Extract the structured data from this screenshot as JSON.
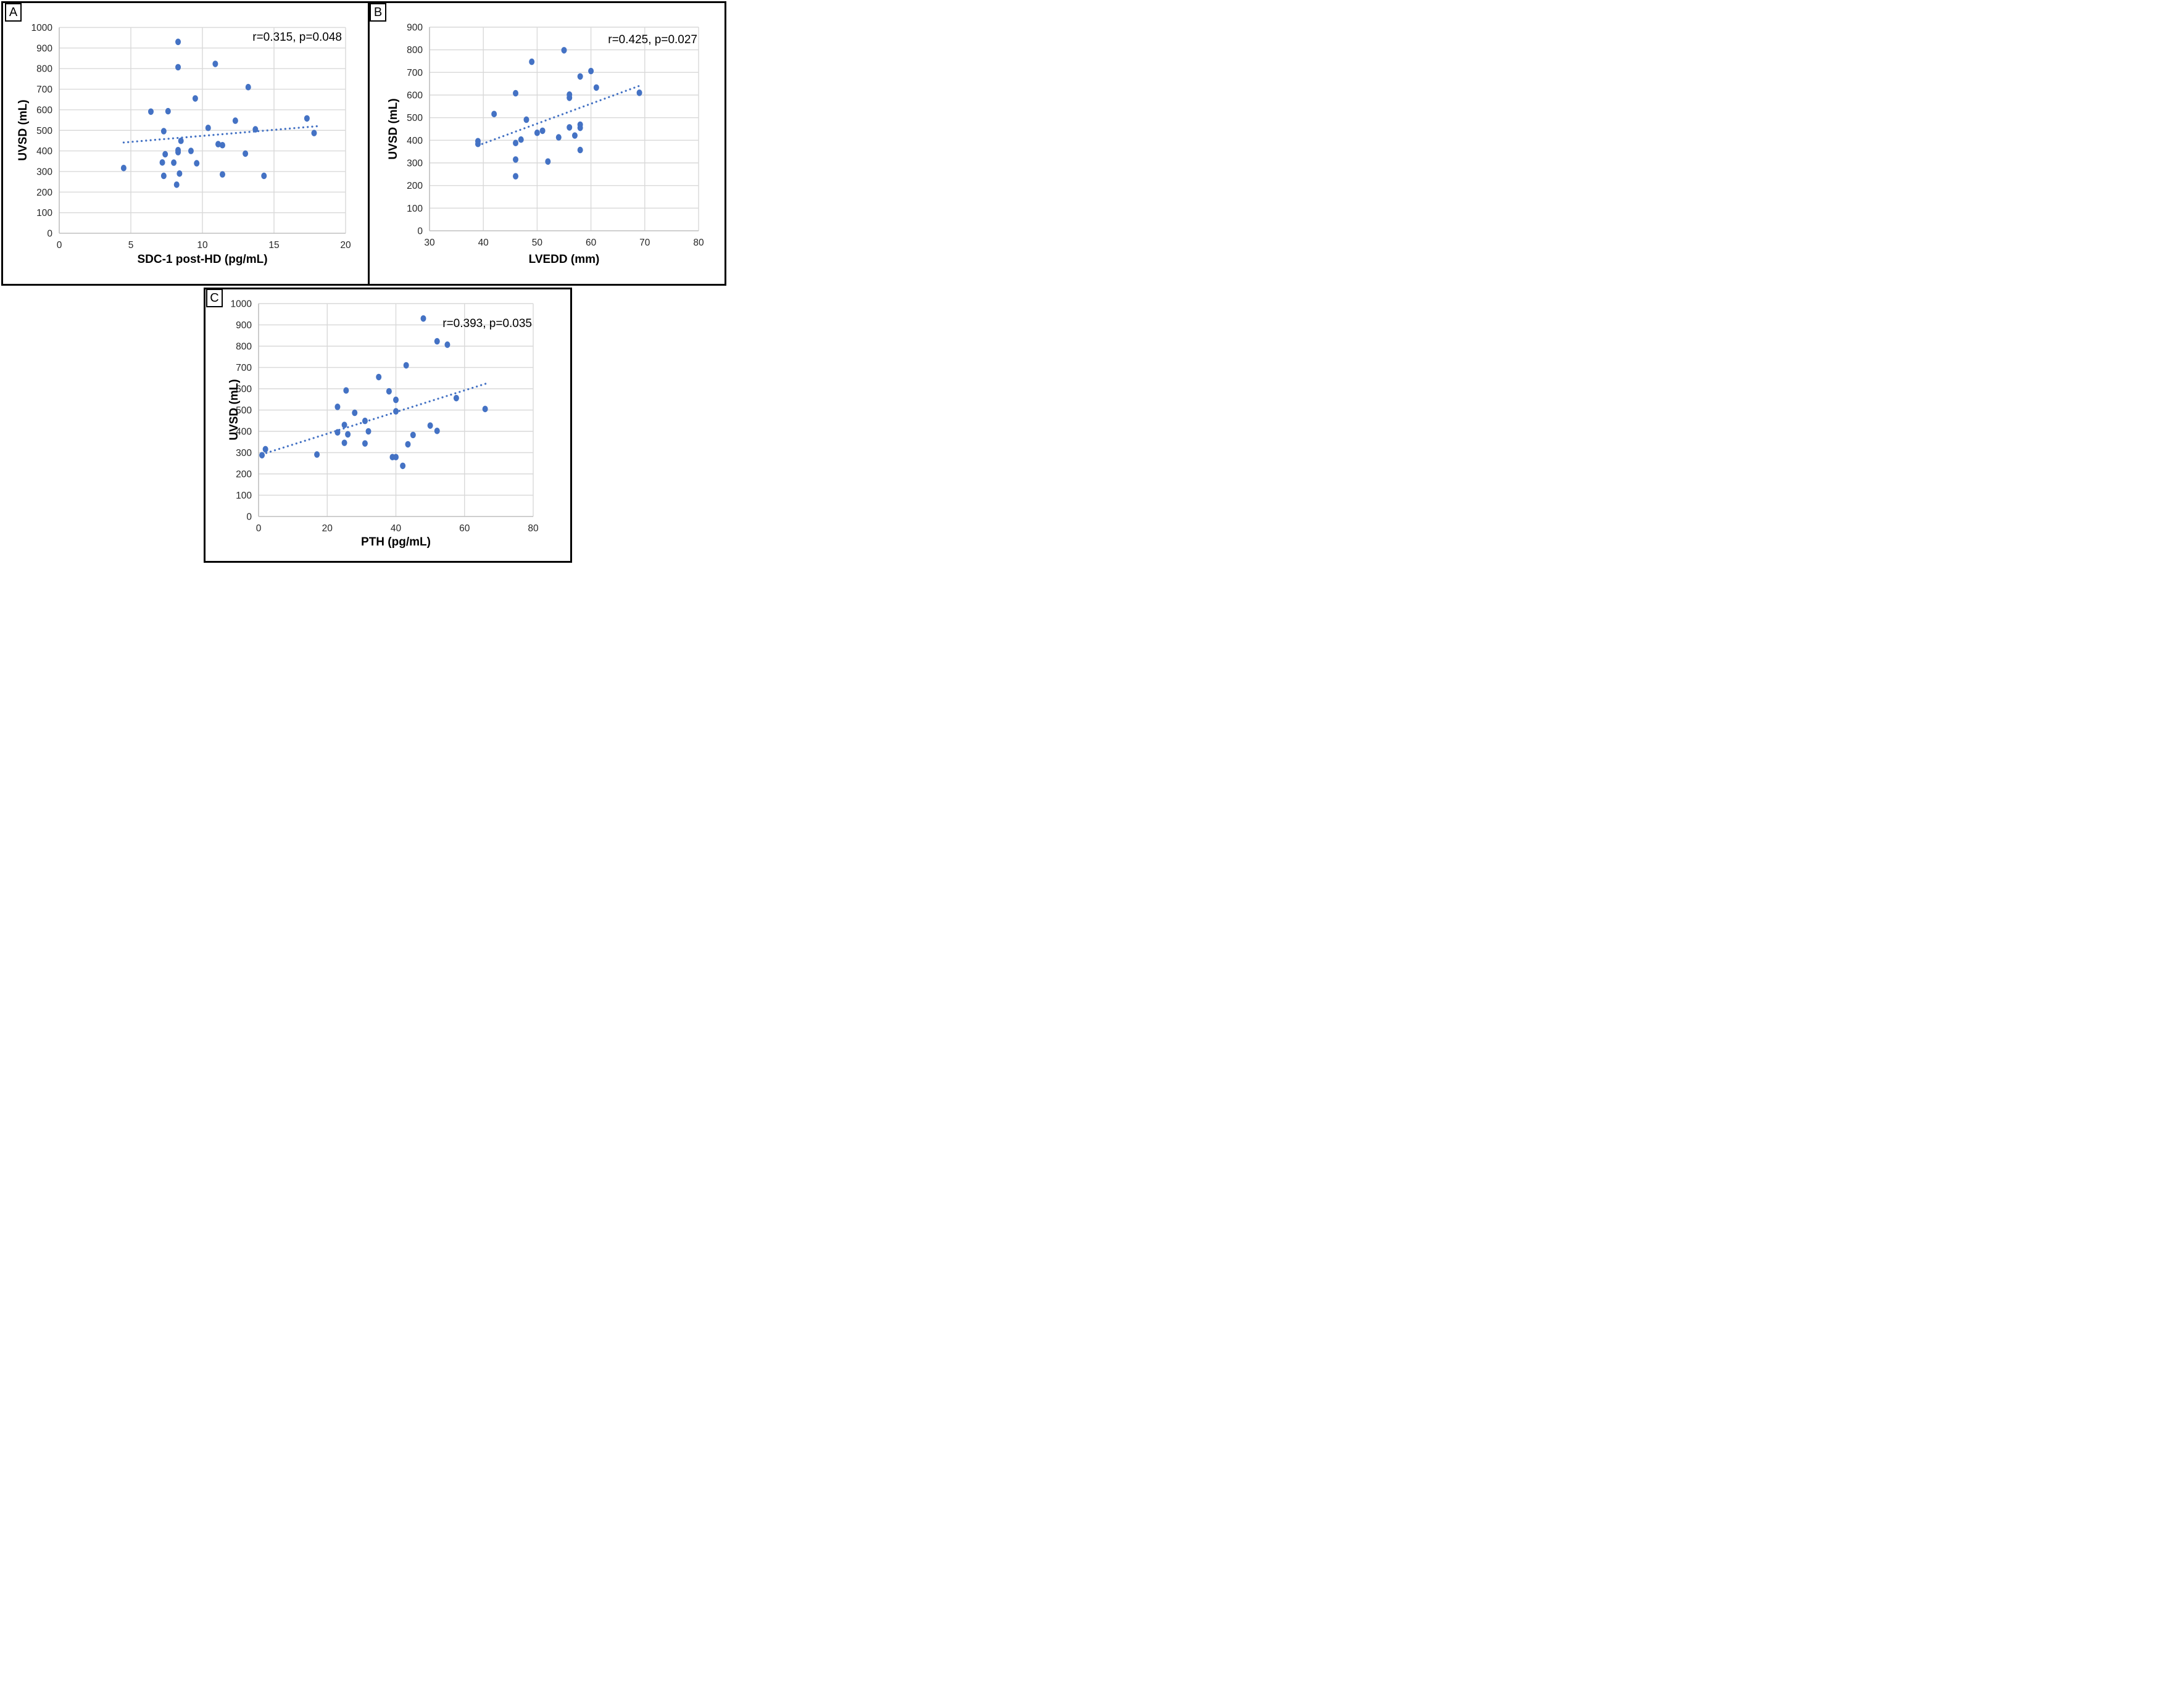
{
  "colors": {
    "marker": "#4472c4",
    "trendline": "#4472c4",
    "gridline": "#d9d9d9",
    "axis_line": "#bfbfbf",
    "tick_text": "#262626",
    "text": "#000000",
    "panel_border": "#000000",
    "background": "#ffffff"
  },
  "chart_data": [
    {
      "id": "A",
      "type": "scatter",
      "panel_label": "A",
      "annotation": "r=0.315, p=0.048",
      "xlabel": "SDC-1 post-HD (pg/mL)",
      "ylabel": "UVSD (mL)",
      "xlim": [
        0,
        20
      ],
      "ylim": [
        0,
        1000
      ],
      "x_ticks": [
        0,
        5,
        10,
        15,
        20
      ],
      "y_ticks": [
        0,
        100,
        200,
        300,
        400,
        500,
        600,
        700,
        800,
        900,
        1000
      ],
      "grid": true,
      "legend": "none",
      "points": [
        [
          4.5,
          317
        ],
        [
          6.4,
          591
        ],
        [
          7.6,
          593
        ],
        [
          7.3,
          496
        ],
        [
          7.4,
          384
        ],
        [
          7.2,
          344
        ],
        [
          7.3,
          279
        ],
        [
          8.0,
          343
        ],
        [
          8.2,
          236
        ],
        [
          8.3,
          930
        ],
        [
          8.3,
          807
        ],
        [
          8.3,
          404
        ],
        [
          8.3,
          394
        ],
        [
          8.4,
          290
        ],
        [
          8.5,
          449
        ],
        [
          9.2,
          400
        ],
        [
          9.5,
          655
        ],
        [
          9.6,
          340
        ],
        [
          10.4,
          512
        ],
        [
          10.9,
          823
        ],
        [
          11.1,
          433
        ],
        [
          11.4,
          428
        ],
        [
          11.4,
          286
        ],
        [
          12.3,
          547
        ],
        [
          13.0,
          387
        ],
        [
          13.2,
          710
        ],
        [
          13.7,
          505
        ],
        [
          14.3,
          279
        ],
        [
          17.3,
          558
        ],
        [
          17.8,
          487
        ]
      ],
      "trendline": {
        "style": "dotted",
        "x1": 4.5,
        "y1": 441,
        "x2": 18.0,
        "y2": 520
      }
    },
    {
      "id": "B",
      "type": "scatter",
      "panel_label": "B",
      "annotation": "r=0.425, p=0.027",
      "xlabel": "LVEDD (mm)",
      "ylabel": "UVSD (mL)",
      "xlim": [
        30,
        80
      ],
      "ylim": [
        0,
        900
      ],
      "x_ticks": [
        30,
        40,
        50,
        60,
        70,
        80
      ],
      "y_ticks": [
        0,
        100,
        200,
        300,
        400,
        500,
        600,
        700,
        800,
        900
      ],
      "grid": true,
      "legend": "none",
      "points": [
        [
          39,
          396
        ],
        [
          39,
          384
        ],
        [
          42,
          516
        ],
        [
          46,
          608
        ],
        [
          46,
          388
        ],
        [
          46,
          315
        ],
        [
          46,
          241
        ],
        [
          47,
          403
        ],
        [
          48,
          491
        ],
        [
          49,
          747
        ],
        [
          50,
          433
        ],
        [
          51,
          442
        ],
        [
          52,
          306
        ],
        [
          54,
          413
        ],
        [
          55,
          798
        ],
        [
          56,
          602
        ],
        [
          56,
          588
        ],
        [
          56,
          457
        ],
        [
          57,
          421
        ],
        [
          58,
          682
        ],
        [
          58,
          469
        ],
        [
          58,
          455
        ],
        [
          58,
          357
        ],
        [
          60,
          706
        ],
        [
          61,
          633
        ],
        [
          69,
          610
        ]
      ],
      "trendline": {
        "style": "dotted",
        "x1": 39,
        "y1": 377,
        "x2": 69.5,
        "y2": 645
      }
    },
    {
      "id": "C",
      "type": "scatter",
      "panel_label": "C",
      "annotation": "r=0.393, p=0.035",
      "xlabel": "PTH (pg/mL)",
      "ylabel": "UVSD (mL)",
      "xlim": [
        0,
        80
      ],
      "ylim": [
        0,
        1000
      ],
      "x_ticks": [
        0,
        20,
        40,
        60,
        80
      ],
      "y_ticks": [
        0,
        100,
        200,
        300,
        400,
        500,
        600,
        700,
        800,
        900,
        1000
      ],
      "grid": true,
      "legend": "none",
      "points": [
        [
          1,
          288
        ],
        [
          2,
          316
        ],
        [
          17,
          291
        ],
        [
          23,
          395
        ],
        [
          23,
          515
        ],
        [
          25,
          430
        ],
        [
          25,
          346
        ],
        [
          25.5,
          592
        ],
        [
          26,
          386
        ],
        [
          28,
          487
        ],
        [
          31,
          449
        ],
        [
          31,
          343
        ],
        [
          32,
          400
        ],
        [
          35,
          655
        ],
        [
          38,
          588
        ],
        [
          39,
          279
        ],
        [
          40,
          279
        ],
        [
          40,
          548
        ],
        [
          40,
          494
        ],
        [
          42,
          238
        ],
        [
          43,
          710
        ],
        [
          43.5,
          339
        ],
        [
          45,
          383
        ],
        [
          48,
          930
        ],
        [
          50,
          427
        ],
        [
          52,
          823
        ],
        [
          52,
          402
        ],
        [
          55,
          807
        ],
        [
          57.6,
          556
        ],
        [
          66,
          505
        ]
      ],
      "trendline": {
        "style": "dotted",
        "x1": 1,
        "y1": 292,
        "x2": 67,
        "y2": 628
      }
    }
  ]
}
